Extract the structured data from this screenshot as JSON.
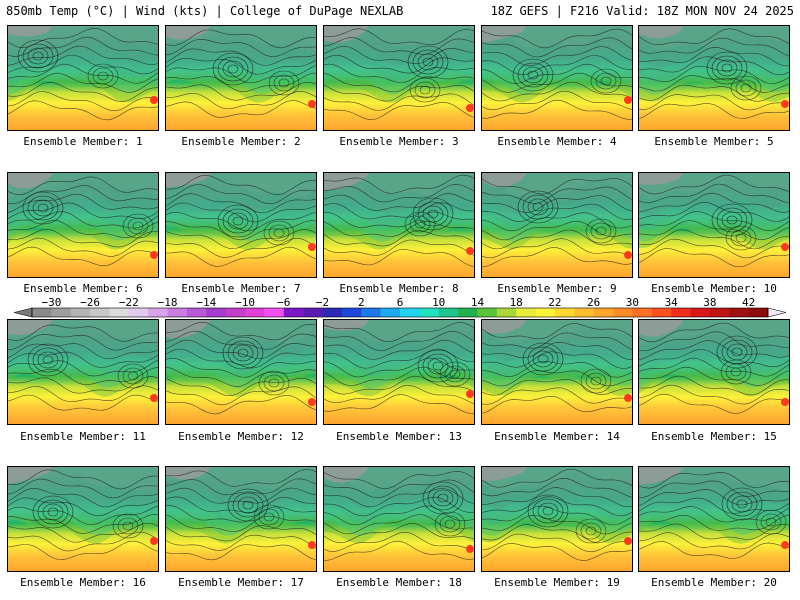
{
  "header": {
    "left": "850mb Temp (°C) | Wind (kts) | College of DuPage NEXLAB",
    "right": "18Z GEFS | F216 Valid: 18Z MON NOV 24 2025"
  },
  "members": [
    "Ensemble Member: 1",
    "Ensemble Member: 2",
    "Ensemble Member: 3",
    "Ensemble Member: 4",
    "Ensemble Member: 5",
    "Ensemble Member: 6",
    "Ensemble Member: 7",
    "Ensemble Member: 8",
    "Ensemble Member: 9",
    "Ensemble Member: 10",
    "Ensemble Member: 11",
    "Ensemble Member: 12",
    "Ensemble Member: 13",
    "Ensemble Member: 14",
    "Ensemble Member: 15",
    "Ensemble Member: 16",
    "Ensemble Member: 17",
    "Ensemble Member: 18",
    "Ensemble Member: 19",
    "Ensemble Member: 20"
  ],
  "colorbar": {
    "labels": [
      "-30",
      "-26",
      "-22",
      "-18",
      "-14",
      "-10",
      "-6",
      "-2",
      "2",
      "6",
      "10",
      "14",
      "18",
      "22",
      "26",
      "30",
      "34",
      "38",
      "42"
    ],
    "min": -32,
    "max": 44,
    "step": 2,
    "colors": [
      "#8a8a8a",
      "#9e9e9e",
      "#b4b4b4",
      "#c8c8c8",
      "#dcdcdc",
      "#e4c8ee",
      "#d8a4e8",
      "#c97ee0",
      "#b85ad6",
      "#a63ccf",
      "#c23ec6",
      "#e040d8",
      "#f050f0",
      "#7a18c8",
      "#5a1cb0",
      "#2a2ab8",
      "#1e48d8",
      "#1e78e8",
      "#1eaaf0",
      "#22d2ee",
      "#22e0c0",
      "#1ec48a",
      "#22b050",
      "#5cc23a",
      "#a8d83a",
      "#e8ec3a",
      "#fff23a",
      "#ffd834",
      "#ffbe30",
      "#ffa42c",
      "#ff8a28",
      "#ff7024",
      "#ff5020",
      "#f02c1c",
      "#d81818",
      "#c01414",
      "#a01010",
      "#8a0c0c"
    ]
  }
}
